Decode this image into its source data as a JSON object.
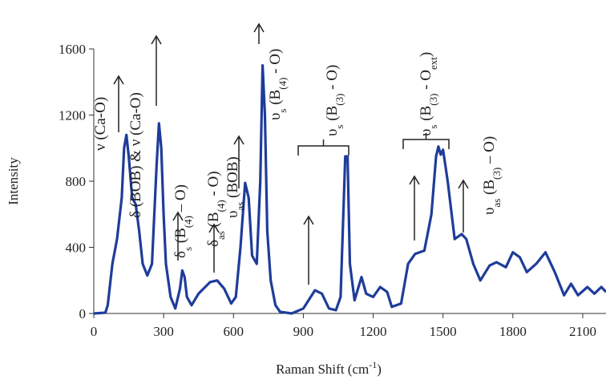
{
  "chart_data": {
    "type": "line",
    "x_label_parts": [
      "Raman Shift (cm",
      "-1",
      ")"
    ],
    "y_label": "Intensity",
    "xlim": [
      0,
      2200
    ],
    "xticks": [
      0,
      300,
      600,
      900,
      1200,
      1500,
      1800,
      2100
    ],
    "ylim": [
      0,
      1600
    ],
    "yticks": [
      0,
      400,
      800,
      1200,
      1600
    ],
    "color": "#1f3c9a",
    "x": [
      0,
      50,
      60,
      80,
      100,
      120,
      130,
      140,
      150,
      165,
      180,
      195,
      210,
      230,
      250,
      270,
      280,
      290,
      300,
      310,
      330,
      350,
      370,
      380,
      390,
      400,
      420,
      450,
      500,
      530,
      560,
      590,
      610,
      630,
      650,
      665,
      680,
      700,
      715,
      725,
      735,
      745,
      760,
      780,
      800,
      850,
      900,
      950,
      980,
      1010,
      1040,
      1060,
      1080,
      1090,
      1100,
      1120,
      1150,
      1170,
      1200,
      1230,
      1260,
      1280,
      1320,
      1350,
      1380,
      1420,
      1450,
      1470,
      1480,
      1490,
      1500,
      1520,
      1550,
      1580,
      1600,
      1630,
      1660,
      1700,
      1730,
      1770,
      1800,
      1830,
      1860,
      1900,
      1940,
      1980,
      2020,
      2050,
      2080,
      2120,
      2150,
      2180,
      2200
    ],
    "values": [
      0,
      5,
      50,
      300,
      450,
      700,
      1000,
      1080,
      950,
      700,
      660,
      500,
      300,
      230,
      300,
      900,
      1150,
      1000,
      600,
      300,
      100,
      30,
      150,
      260,
      220,
      100,
      50,
      120,
      190,
      200,
      150,
      60,
      100,
      400,
      790,
      700,
      350,
      300,
      800,
      1500,
      1200,
      500,
      200,
      50,
      10,
      0,
      30,
      140,
      120,
      30,
      20,
      100,
      950,
      950,
      300,
      80,
      220,
      120,
      100,
      160,
      130,
      40,
      60,
      300,
      360,
      380,
      600,
      950,
      1010,
      960,
      990,
      800,
      450,
      480,
      450,
      300,
      200,
      290,
      310,
      280,
      370,
      340,
      250,
      300,
      370,
      250,
      110,
      180,
      110,
      160,
      120,
      160,
      130
    ],
    "annotations": [
      [
        "ν (Ca-O)"
      ],
      [
        "δ (BOB) & ν (Ca-O)"
      ],
      [
        "δ",
        "s",
        " (B",
        "(4)",
        " – O)"
      ],
      [
        "δ",
        "as",
        " (B",
        "(4)",
        " - O)"
      ],
      [
        "υ",
        "as",
        " (BOB)"
      ],
      [
        "υ",
        "s",
        " (B",
        "(4)",
        " - O)"
      ],
      [
        "υ",
        "s",
        " (B",
        "(3)",
        " - O)"
      ],
      [
        "υ",
        "s",
        " (B",
        "(3)",
        " - O",
        "ext",
        ")"
      ],
      [
        "υ",
        "as",
        " (B",
        "(3)",
        " – O)"
      ]
    ]
  }
}
